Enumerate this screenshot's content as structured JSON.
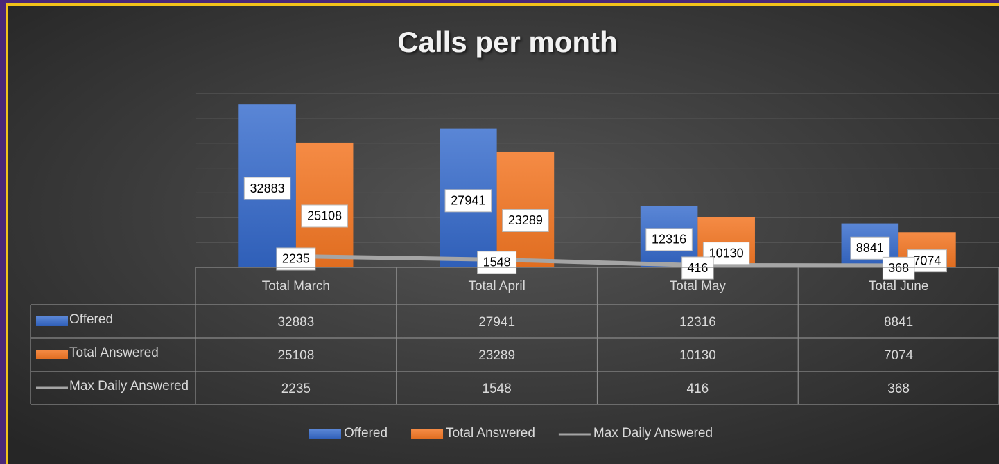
{
  "chart_data": {
    "type": "bar",
    "title": "Calls per month",
    "categories": [
      "Total March",
      "Total April",
      "Total May",
      "Total June"
    ],
    "series": [
      {
        "name": "Offered",
        "type": "bar",
        "color": "#4472c4",
        "values": [
          32883,
          27941,
          12316,
          8841
        ]
      },
      {
        "name": "Total Answered",
        "type": "bar",
        "color": "#ed7d31",
        "values": [
          25108,
          23289,
          10130,
          7074
        ]
      },
      {
        "name": "Max Daily Answered",
        "type": "line",
        "color": "#a5a5a5",
        "values": [
          2235,
          1548,
          416,
          368
        ]
      }
    ],
    "ylim": [
      0,
      35000
    ],
    "yticks": [
      0,
      5000,
      10000,
      15000,
      20000,
      25000,
      30000,
      35000
    ],
    "grid": true,
    "data_table": true,
    "legend": "bottom"
  }
}
